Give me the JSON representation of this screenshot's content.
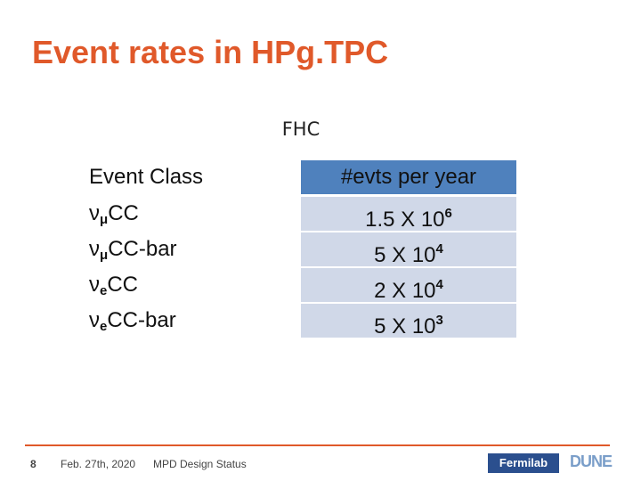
{
  "header": {
    "title": "Event rates in HPg.TPC",
    "subtitle": "FHC"
  },
  "table": {
    "columns": [
      "Event Class",
      "#evts per year"
    ],
    "rows": [
      [
        {
          "main": "ν",
          "sub": "μ",
          "rest": "CC"
        },
        {
          "base": "1.5 X 10",
          "exp": "6"
        }
      ],
      [
        {
          "main": "ν",
          "sub": "μ",
          "rest": "CC-bar"
        },
        {
          "base": "5 X 10",
          "exp": "4"
        }
      ],
      [
        {
          "main": "ν",
          "sub": "e",
          "rest": "CC"
        },
        {
          "base": "2 X 10",
          "exp": "4"
        }
      ],
      [
        {
          "main": "ν",
          "sub": "e",
          "rest": "CC-bar"
        },
        {
          "base": "5 X 10",
          "exp": "3"
        }
      ]
    ]
  },
  "footer": {
    "page": "8",
    "date": "Feb. 27th, 2020",
    "topic": "MPD Design Status",
    "logos": [
      "Fermilab",
      "DUNE"
    ]
  }
}
